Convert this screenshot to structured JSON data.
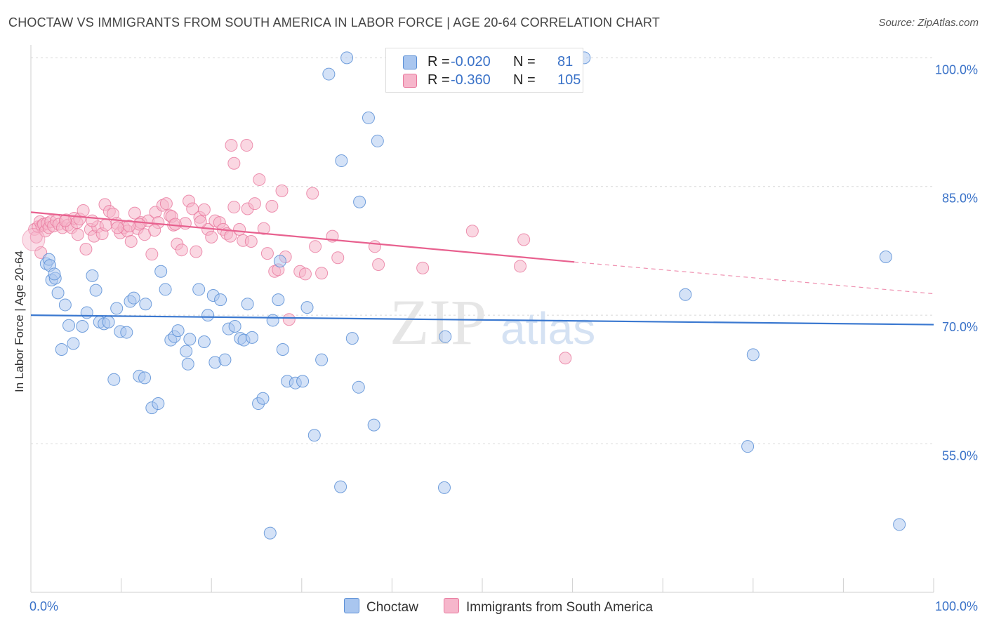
{
  "header": {
    "title": "CHOCTAW VS IMMIGRANTS FROM SOUTH AMERICA IN LABOR FORCE | AGE 20-64 CORRELATION CHART",
    "source": "Source: ZipAtlas.com"
  },
  "legend": {
    "series": [
      {
        "r_label": "R =",
        "r_value": "-0.020",
        "n_label": "N =",
        "n_value": "81"
      },
      {
        "r_label": "R =",
        "r_value": "-0.360",
        "n_label": "N =",
        "n_value": "105"
      }
    ]
  },
  "bottom_legend": {
    "choctaw": "Choctaw",
    "immigrants": "Immigrants from South America"
  },
  "watermark": {
    "zip": "ZIP",
    "atlas": "atlas"
  },
  "colors": {
    "blue_fill": "#a9c6ef",
    "blue_stroke": "#5b8fd6",
    "blue_line": "#3a78d0",
    "pink_fill": "#f6b6cb",
    "pink_stroke": "#e8789d",
    "pink_line": "#e8618f",
    "axis_text": "#3a72c8",
    "grid": "#d8d8d8"
  },
  "chart_data": {
    "type": "scatter",
    "title": "CHOCTAW VS IMMIGRANTS FROM SOUTH AMERICA IN LABOR FORCE | AGE 20-64 CORRELATION CHART",
    "xlabel": "",
    "ylabel": "In Labor Force | Age 20-64",
    "xlim": [
      0,
      100
    ],
    "ylim": [
      39.5,
      101.5
    ],
    "x_tick_labels": [
      {
        "value": 0,
        "label": "0.0%"
      },
      {
        "value": 100,
        "label": "100.0%"
      }
    ],
    "y_tick_labels": [
      {
        "value": 100,
        "label": "100.0%"
      },
      {
        "value": 85,
        "label": "85.0%"
      },
      {
        "value": 70,
        "label": "70.0%"
      },
      {
        "value": 55,
        "label": "55.0%"
      }
    ],
    "y_gridlines": [
      100,
      85,
      70,
      55
    ],
    "series": [
      {
        "name": "Choctaw",
        "color": "#5b8fd6",
        "points": [
          [
            1.7,
            76.0
          ],
          [
            2.0,
            76.5
          ],
          [
            2.1,
            75.8
          ],
          [
            2.3,
            74.1
          ],
          [
            2.7,
            74.3
          ],
          [
            3.4,
            66.0
          ],
          [
            3.8,
            71.2
          ],
          [
            4.2,
            68.8
          ],
          [
            4.7,
            66.7
          ],
          [
            5.7,
            68.7
          ],
          [
            6.2,
            70.3
          ],
          [
            6.8,
            74.6
          ],
          [
            7.2,
            72.9
          ],
          [
            7.6,
            69.2
          ],
          [
            8.1,
            69.0
          ],
          [
            8.6,
            69.2
          ],
          [
            9.2,
            62.5
          ],
          [
            9.5,
            70.8
          ],
          [
            9.9,
            68.1
          ],
          [
            10.6,
            68.0
          ],
          [
            11.0,
            71.6
          ],
          [
            11.4,
            72.0
          ],
          [
            12.0,
            62.9
          ],
          [
            12.6,
            62.7
          ],
          [
            12.7,
            71.3
          ],
          [
            13.4,
            59.2
          ],
          [
            14.1,
            59.7
          ],
          [
            14.4,
            75.1
          ],
          [
            14.9,
            73.0
          ],
          [
            15.5,
            67.1
          ],
          [
            15.9,
            67.5
          ],
          [
            16.3,
            68.2
          ],
          [
            17.2,
            65.8
          ],
          [
            17.4,
            64.3
          ],
          [
            17.6,
            67.2
          ],
          [
            18.6,
            73.0
          ],
          [
            19.2,
            66.9
          ],
          [
            19.6,
            70.0
          ],
          [
            20.2,
            72.3
          ],
          [
            20.4,
            64.5
          ],
          [
            21.0,
            71.8
          ],
          [
            21.5,
            64.8
          ],
          [
            21.9,
            68.4
          ],
          [
            22.6,
            68.7
          ],
          [
            23.2,
            67.3
          ],
          [
            23.6,
            67.1
          ],
          [
            24.0,
            71.3
          ],
          [
            24.5,
            67.4
          ],
          [
            25.2,
            59.7
          ],
          [
            25.7,
            60.3
          ],
          [
            26.8,
            69.4
          ],
          [
            27.4,
            71.8
          ],
          [
            27.6,
            76.3
          ],
          [
            27.9,
            66.0
          ],
          [
            28.4,
            62.3
          ],
          [
            29.3,
            62.1
          ],
          [
            30.1,
            62.3
          ],
          [
            30.6,
            70.9
          ],
          [
            31.4,
            56.0
          ],
          [
            32.2,
            64.8
          ],
          [
            33.0,
            98.1
          ],
          [
            34.3,
            50.0
          ],
          [
            35.0,
            100.0
          ],
          [
            35.6,
            67.3
          ],
          [
            36.3,
            61.6
          ],
          [
            37.4,
            93.0
          ],
          [
            38.0,
            57.2
          ],
          [
            45.8,
            49.9
          ],
          [
            45.9,
            67.5
          ],
          [
            61.3,
            100.0
          ],
          [
            72.5,
            72.4
          ],
          [
            80.0,
            65.4
          ],
          [
            79.4,
            54.7
          ],
          [
            94.7,
            76.8
          ],
          [
            96.2,
            45.6
          ],
          [
            38.4,
            90.3
          ],
          [
            34.4,
            88.0
          ],
          [
            36.4,
            83.2
          ],
          [
            26.5,
            44.6
          ],
          [
            2.6,
            74.8
          ],
          [
            3.0,
            72.6
          ]
        ]
      },
      {
        "name": "Immigrants from South America",
        "color": "#e8789d",
        "points": [
          [
            0.4,
            80.0
          ],
          [
            0.6,
            79.1
          ],
          [
            0.8,
            80.3
          ],
          [
            1.0,
            80.9
          ],
          [
            1.2,
            80.4
          ],
          [
            1.4,
            80.6
          ],
          [
            1.6,
            79.8
          ],
          [
            1.8,
            80.7
          ],
          [
            2.0,
            80.2
          ],
          [
            2.2,
            80.9
          ],
          [
            2.5,
            80.4
          ],
          [
            2.8,
            81.0
          ],
          [
            3.1,
            80.6
          ],
          [
            3.5,
            80.2
          ],
          [
            3.9,
            81.1
          ],
          [
            4.1,
            80.5
          ],
          [
            4.5,
            80.2
          ],
          [
            4.8,
            81.3
          ],
          [
            5.1,
            80.8
          ],
          [
            5.4,
            81.2
          ],
          [
            5.8,
            82.2
          ],
          [
            6.1,
            77.7
          ],
          [
            6.6,
            80.0
          ],
          [
            7.0,
            79.2
          ],
          [
            7.4,
            80.3
          ],
          [
            7.9,
            79.5
          ],
          [
            8.2,
            82.9
          ],
          [
            8.7,
            82.1
          ],
          [
            9.1,
            81.8
          ],
          [
            9.5,
            80.7
          ],
          [
            9.9,
            79.6
          ],
          [
            10.3,
            80.2
          ],
          [
            10.7,
            79.8
          ],
          [
            11.1,
            78.6
          ],
          [
            11.5,
            81.9
          ],
          [
            11.8,
            80.1
          ],
          [
            12.2,
            80.8
          ],
          [
            12.6,
            79.4
          ],
          [
            13.0,
            81.0
          ],
          [
            13.4,
            77.1
          ],
          [
            13.8,
            82.0
          ],
          [
            14.1,
            80.8
          ],
          [
            14.6,
            82.8
          ],
          [
            15.0,
            83.0
          ],
          [
            15.4,
            81.6
          ],
          [
            15.8,
            80.5
          ],
          [
            16.2,
            78.3
          ],
          [
            16.7,
            77.6
          ],
          [
            17.1,
            80.7
          ],
          [
            17.5,
            83.3
          ],
          [
            17.9,
            82.4
          ],
          [
            18.3,
            77.4
          ],
          [
            18.7,
            81.4
          ],
          [
            19.2,
            82.3
          ],
          [
            19.6,
            80.0
          ],
          [
            20.0,
            79.1
          ],
          [
            20.4,
            81.0
          ],
          [
            20.9,
            80.8
          ],
          [
            21.3,
            80.0
          ],
          [
            21.7,
            79.5
          ],
          [
            22.1,
            79.2
          ],
          [
            22.5,
            82.6
          ],
          [
            23.1,
            80.0
          ],
          [
            23.5,
            78.7
          ],
          [
            24.0,
            82.4
          ],
          [
            24.4,
            78.6
          ],
          [
            24.8,
            83.0
          ],
          [
            25.3,
            85.8
          ],
          [
            25.8,
            80.1
          ],
          [
            26.2,
            77.2
          ],
          [
            26.7,
            82.7
          ],
          [
            27.0,
            75.1
          ],
          [
            27.4,
            75.3
          ],
          [
            27.8,
            84.5
          ],
          [
            28.2,
            76.8
          ],
          [
            28.6,
            69.5
          ],
          [
            29.8,
            75.1
          ],
          [
            30.4,
            74.8
          ],
          [
            31.2,
            84.2
          ],
          [
            31.5,
            78.0
          ],
          [
            32.2,
            74.9
          ],
          [
            33.4,
            79.2
          ],
          [
            34.0,
            76.7
          ],
          [
            38.1,
            78.0
          ],
          [
            38.5,
            75.9
          ],
          [
            43.4,
            75.5
          ],
          [
            48.9,
            79.8
          ],
          [
            54.2,
            75.7
          ],
          [
            54.6,
            78.8
          ],
          [
            59.2,
            65.0
          ],
          [
            22.2,
            89.8
          ],
          [
            23.9,
            89.8
          ],
          [
            22.5,
            87.7
          ],
          [
            6.8,
            81.0
          ],
          [
            9.6,
            80.2
          ],
          [
            12.0,
            80.6
          ],
          [
            15.6,
            81.5
          ],
          [
            18.8,
            80.9
          ],
          [
            3.8,
            81.0
          ],
          [
            5.2,
            79.4
          ],
          [
            8.3,
            80.5
          ],
          [
            10.9,
            80.4
          ],
          [
            13.7,
            79.9
          ],
          [
            1.1,
            77.3
          ],
          [
            16.0,
            80.6
          ]
        ]
      }
    ],
    "trend_lines": [
      {
        "series": "Choctaw",
        "x": [
          0,
          100
        ],
        "y": [
          70.0,
          68.9
        ],
        "style": "solid"
      },
      {
        "series": "Immigrants from South America",
        "x": [
          0,
          60.2
        ],
        "y": [
          82.0,
          76.2
        ],
        "style": "solid"
      },
      {
        "series": "Immigrants from South America",
        "x": [
          60.2,
          100
        ],
        "y": [
          76.2,
          72.5
        ],
        "style": "dashed"
      }
    ]
  }
}
